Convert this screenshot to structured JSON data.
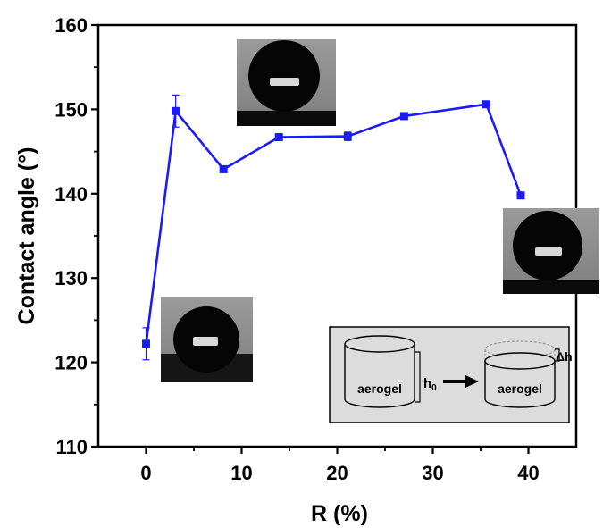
{
  "chart_data": {
    "type": "line",
    "title": "",
    "xlabel": "R (%)",
    "ylabel": "Contact angle (°)",
    "xlim": [
      -5,
      45
    ],
    "ylim": [
      110,
      160
    ],
    "x_ticks": [
      0,
      10,
      20,
      30,
      40
    ],
    "y_ticks": [
      110,
      120,
      130,
      140,
      150,
      160
    ],
    "grid": false,
    "series": [
      {
        "color": "#1a1aff",
        "marker": "square",
        "points": [
          {
            "x": 0,
            "y": 122.2,
            "err": 1.9
          },
          {
            "x": 3.1,
            "y": 149.8,
            "err": 1.9
          },
          {
            "x": 8.1,
            "y": 142.9,
            "err": 0
          },
          {
            "x": 13.9,
            "y": 146.7,
            "err": 0
          },
          {
            "x": 21.1,
            "y": 146.8,
            "err": 0.5
          },
          {
            "x": 27.0,
            "y": 149.2,
            "err": 0
          },
          {
            "x": 35.6,
            "y": 150.6,
            "err": 0
          },
          {
            "x": 39.2,
            "y": 139.8,
            "err": 0
          }
        ]
      }
    ],
    "annotations": {
      "inset_labels": {
        "aerogel_left": "aerogel",
        "aerogel_right": "aerogel",
        "h0": "h",
        "h0_sub": "0",
        "delta_h": "Δh"
      }
    }
  }
}
